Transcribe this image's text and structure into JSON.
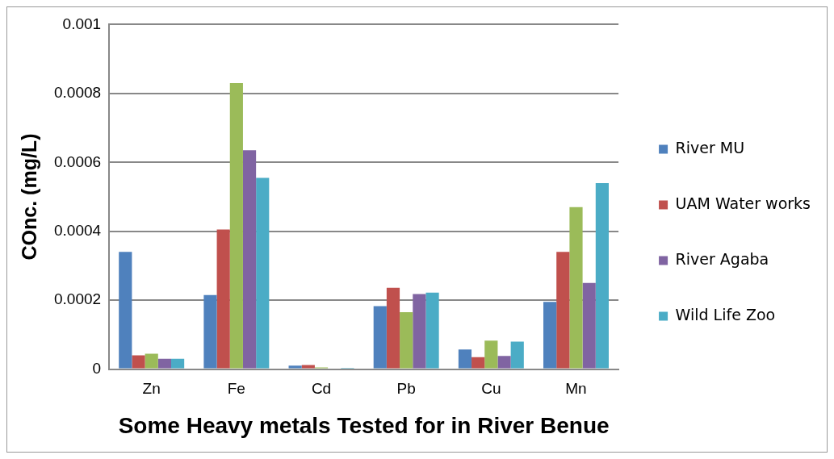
{
  "chart_data": {
    "type": "bar",
    "xlabel": "Some Heavy metals Tested for in River Benue",
    "ylabel": "COnc. (mg/L)",
    "categories": [
      "Zn",
      "Fe",
      "Cd",
      "Pb",
      "Cu",
      "Mn"
    ],
    "series": [
      {
        "name": "River MU",
        "color": "#4f81bd",
        "values": [
          0.00034,
          0.000215,
          1e-05,
          0.000183,
          5.7e-05,
          0.000195
        ]
      },
      {
        "name": "UAM Water works",
        "color": "#c0504d",
        "values": [
          4e-05,
          0.000405,
          1.2e-05,
          0.000236,
          3.5e-05,
          0.00034
        ]
      },
      {
        "color": "#9bbb59",
        "values": [
          4.5e-05,
          0.00083,
          5e-06,
          0.000165,
          8.3e-05,
          0.00047
        ]
      },
      {
        "name": "River Agaba",
        "color": "#8064a2",
        "values": [
          3e-05,
          0.000635,
          null,
          0.000218,
          3.8e-05,
          0.00025
        ]
      },
      {
        "name": "Wild Life Zoo",
        "color": "#4bacc6",
        "values": [
          3e-05,
          0.000555,
          4e-06,
          0.000222,
          8e-05,
          0.00054
        ]
      }
    ],
    "ylim": [
      0,
      0.001
    ],
    "yticks": [
      0,
      0.0002,
      0.0004,
      0.0006,
      0.0008,
      0.001
    ],
    "grid": "y",
    "legend": "right"
  }
}
